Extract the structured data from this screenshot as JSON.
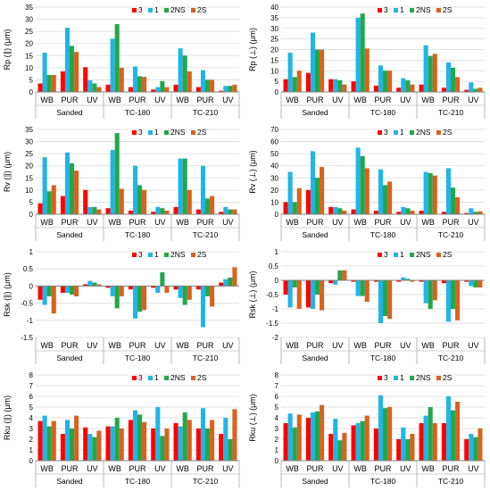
{
  "chart_data": [
    {
      "type": "bar",
      "ylabel": "Rp (∥) (μm)",
      "ylim": [
        0,
        35
      ],
      "ytick_step": 5,
      "y_ticks": [
        "0",
        "5",
        "10",
        "15",
        "20",
        "25",
        "30",
        "35"
      ],
      "groups": [
        "Sanded",
        "TC-180",
        "TC-210"
      ],
      "categories": [
        "WB",
        "PUR",
        "UV",
        "WB",
        "PUR",
        "UV",
        "WB",
        "PUR",
        "UV"
      ],
      "legend": [
        "3",
        "1",
        "2NS",
        "2S"
      ],
      "series": [
        {
          "name": "3",
          "color": "#ff0000",
          "values": [
            3.5,
            8.5,
            10.2,
            3.0,
            2.0,
            1.0,
            3.0,
            2.0,
            0.5
          ]
        },
        {
          "name": "1",
          "color": "#1fb5e8",
          "values": [
            16.2,
            26.5,
            4.8,
            22.0,
            10.5,
            2.0,
            18.0,
            9.0,
            2.5
          ]
        },
        {
          "name": "2NS",
          "color": "#22a84a",
          "values": [
            7.0,
            19.0,
            3.5,
            28.0,
            6.5,
            4.5,
            15.0,
            5.0,
            2.5
          ]
        },
        {
          "name": "2S",
          "color": "#d9621c",
          "values": [
            7.0,
            16.5,
            2.0,
            10.0,
            6.2,
            2.0,
            8.5,
            5.0,
            3.0
          ]
        }
      ]
    },
    {
      "type": "bar",
      "ylabel": "Rp (⊥) (μm)",
      "ylim": [
        0,
        40
      ],
      "ytick_step": 5,
      "y_ticks": [
        "0",
        "5",
        "10",
        "15",
        "20",
        "25",
        "30",
        "35",
        "40"
      ],
      "groups": [
        "Sanded",
        "TC-180",
        "TC-210"
      ],
      "categories": [
        "WB",
        "PUR",
        "UV",
        "WB",
        "PUR",
        "UV",
        "WB",
        "PUR",
        "UV"
      ],
      "legend": [
        "3",
        "1",
        "2NS",
        "2S"
      ],
      "series": [
        {
          "name": "3",
          "color": "#ff0000",
          "values": [
            6.0,
            9.0,
            6.0,
            5.0,
            3.0,
            2.0,
            3.5,
            2.0,
            1.0
          ]
        },
        {
          "name": "1",
          "color": "#1fb5e8",
          "values": [
            18.5,
            28.0,
            6.0,
            35.0,
            12.5,
            6.5,
            22.0,
            14.0,
            4.5
          ]
        },
        {
          "name": "2NS",
          "color": "#22a84a",
          "values": [
            7.0,
            20.0,
            5.5,
            37.0,
            10.0,
            5.5,
            17.0,
            11.5,
            1.5
          ]
        },
        {
          "name": "2S",
          "color": "#d9621c",
          "values": [
            10.0,
            20.0,
            3.5,
            20.5,
            10.0,
            3.5,
            18.0,
            7.0,
            2.0
          ]
        }
      ]
    },
    {
      "type": "bar",
      "ylabel": "Rv (∥) (μm)",
      "ylim": [
        0,
        35
      ],
      "ytick_step": 5,
      "y_ticks": [
        "0",
        "5",
        "10",
        "15",
        "20",
        "25",
        "30",
        "35"
      ],
      "groups": [
        "Sanded",
        "TC-180",
        "TC-210"
      ],
      "categories": [
        "WB",
        "PUR",
        "UV",
        "WB",
        "PUR",
        "UV",
        "WB",
        "PUR",
        "UV"
      ],
      "legend": [
        "3",
        "1",
        "2NS",
        "2S"
      ],
      "series": [
        {
          "name": "3",
          "color": "#ff0000",
          "values": [
            4.5,
            7.5,
            10.0,
            2.5,
            1.5,
            1.0,
            3.0,
            2.0,
            1.0
          ]
        },
        {
          "name": "1",
          "color": "#1fb5e8",
          "values": [
            23.5,
            25.5,
            3.0,
            26.5,
            20.0,
            3.0,
            23.0,
            20.0,
            3.0
          ]
        },
        {
          "name": "2NS",
          "color": "#22a84a",
          "values": [
            9.5,
            21.0,
            3.0,
            33.5,
            12.0,
            2.5,
            23.0,
            6.5,
            2.0
          ]
        },
        {
          "name": "2S",
          "color": "#d9621c",
          "values": [
            12.0,
            18.0,
            2.0,
            10.5,
            10.0,
            1.5,
            10.0,
            7.5,
            2.0
          ]
        }
      ]
    },
    {
      "type": "bar",
      "ylabel": "Rv (⊥) (μm)",
      "ylim": [
        0,
        70
      ],
      "ytick_step": 10,
      "y_ticks": [
        "0",
        "10",
        "20",
        "30",
        "40",
        "50",
        "60",
        "70"
      ],
      "groups": [
        "Sanded",
        "TC-180",
        "TC-210"
      ],
      "categories": [
        "WB",
        "PUR",
        "UV",
        "WB",
        "PUR",
        "UV",
        "WB",
        "PUR",
        "UV"
      ],
      "legend": [
        "3",
        "1",
        "2NS",
        "2S"
      ],
      "series": [
        {
          "name": "3",
          "color": "#ff0000",
          "values": [
            10.0,
            20.0,
            6.0,
            4.0,
            3.0,
            2.0,
            3.0,
            2.0,
            1.0
          ]
        },
        {
          "name": "1",
          "color": "#1fb5e8",
          "values": [
            35.0,
            52.0,
            6.0,
            55.0,
            37.0,
            6.0,
            35.0,
            38.0,
            5.0
          ]
        },
        {
          "name": "2NS",
          "color": "#22a84a",
          "values": [
            10.0,
            30.0,
            5.0,
            48.0,
            24.0,
            5.0,
            34.0,
            22.0,
            2.0
          ]
        },
        {
          "name": "2S",
          "color": "#d9621c",
          "values": [
            21.5,
            39.0,
            3.0,
            38.0,
            27.0,
            3.0,
            32.0,
            14.0,
            2.5
          ]
        }
      ]
    },
    {
      "type": "bar",
      "ylabel": "Rsk (∥) (μm)",
      "ylim": [
        -1.5,
        1
      ],
      "ytick_step": 0.5,
      "y_ticks": [
        "-1.5",
        "-1",
        "-0.5",
        "0",
        "0.5",
        "1"
      ],
      "groups": [
        "Sanded",
        "TC-180",
        "TC-210"
      ],
      "categories": [
        "WB",
        "PUR",
        "UV",
        "WB",
        "PUR",
        "UV",
        "WB",
        "PUR",
        "UV"
      ],
      "legend": [
        "3",
        "1",
        "2NS",
        "2S"
      ],
      "series": [
        {
          "name": "3",
          "color": "#ff0000",
          "values": [
            -0.4,
            -0.2,
            0.05,
            -0.05,
            -0.1,
            -0.05,
            -0.1,
            -0.1,
            0.1
          ]
        },
        {
          "name": "1",
          "color": "#1fb5e8",
          "values": [
            -0.55,
            -0.2,
            0.15,
            -0.3,
            -0.95,
            -0.2,
            -0.35,
            -1.2,
            0.2
          ]
        },
        {
          "name": "2NS",
          "color": "#22a84a",
          "values": [
            -0.3,
            -0.25,
            0.1,
            -0.65,
            -0.75,
            0.4,
            -0.55,
            -0.3,
            0.25
          ]
        },
        {
          "name": "2S",
          "color": "#d9621c",
          "values": [
            -0.8,
            -0.3,
            0.05,
            -0.3,
            -0.7,
            -0.2,
            -0.4,
            -0.6,
            0.55
          ]
        }
      ]
    },
    {
      "type": "bar",
      "ylabel": "Rsk (⊥) (μm)",
      "ylim": [
        -2,
        1
      ],
      "ytick_step": 0.5,
      "y_ticks": [
        "-2",
        "-1.5",
        "-1",
        "-0.5",
        "0",
        "0.5",
        "1"
      ],
      "groups": [
        "Sanded",
        "TC-180",
        "TC-210"
      ],
      "categories": [
        "WB",
        "PUR",
        "UV",
        "WB",
        "PUR",
        "UV",
        "WB",
        "PUR",
        "UV"
      ],
      "legend": [
        "3",
        "1",
        "2NS",
        "2S"
      ],
      "series": [
        {
          "name": "3",
          "color": "#ff0000",
          "values": [
            -0.5,
            -0.95,
            -0.1,
            -0.05,
            -0.05,
            -0.05,
            -0.05,
            -0.1,
            -0.05
          ]
        },
        {
          "name": "1",
          "color": "#1fb5e8",
          "values": [
            -0.95,
            -1.0,
            -0.15,
            -0.55,
            -1.5,
            0.1,
            -0.8,
            -1.45,
            -0.2
          ]
        },
        {
          "name": "2NS",
          "color": "#22a84a",
          "values": [
            -0.25,
            -0.5,
            0.35,
            -0.55,
            -1.25,
            0.05,
            -1.0,
            -1.0,
            -0.25
          ]
        },
        {
          "name": "2S",
          "color": "#d9621c",
          "values": [
            -1.0,
            -1.05,
            0.35,
            -0.75,
            -1.35,
            -0.05,
            -0.7,
            -1.4,
            -0.25
          ]
        }
      ]
    },
    {
      "type": "bar",
      "ylabel": "Rku (∥) (μm)",
      "ylim": [
        0,
        8
      ],
      "ytick_step": 1,
      "y_ticks": [
        "0",
        "1",
        "2",
        "3",
        "4",
        "5",
        "6",
        "7",
        "8"
      ],
      "groups": [
        "Sanded",
        "TC-180",
        "TC-210"
      ],
      "categories": [
        "WB",
        "PUR",
        "UV",
        "WB",
        "PUR",
        "UV",
        "WB",
        "PUR",
        "UV"
      ],
      "legend": [
        "3",
        "1",
        "2NS",
        "2S"
      ],
      "series": [
        {
          "name": "3",
          "color": "#ff0000",
          "values": [
            3.7,
            2.5,
            3.1,
            3.2,
            3.8,
            3.0,
            3.5,
            3.0,
            2.5
          ]
        },
        {
          "name": "1",
          "color": "#1fb5e8",
          "values": [
            4.2,
            3.8,
            2.5,
            3.2,
            4.7,
            5.0,
            3.2,
            4.9,
            4.0
          ]
        },
        {
          "name": "2NS",
          "color": "#22a84a",
          "values": [
            3.2,
            3.0,
            2.2,
            4.0,
            4.3,
            2.3,
            4.5,
            3.0,
            2.0
          ]
        },
        {
          "name": "2S",
          "color": "#d9621c",
          "values": [
            3.7,
            4.2,
            2.8,
            3.0,
            3.6,
            3.0,
            3.8,
            3.8,
            4.8
          ]
        }
      ]
    },
    {
      "type": "bar",
      "ylabel": "Rku (⊥) (μm)",
      "ylim": [
        0,
        8
      ],
      "ytick_step": 1,
      "y_ticks": [
        "0",
        "1",
        "2",
        "3",
        "4",
        "5",
        "6",
        "7",
        "8"
      ],
      "groups": [
        "Sanded",
        "TC-180",
        "TC-210"
      ],
      "categories": [
        "WB",
        "PUR",
        "UV",
        "WB",
        "PUR",
        "UV",
        "WB",
        "PUR",
        "UV"
      ],
      "legend": [
        "3",
        "1",
        "2NS",
        "2S"
      ],
      "series": [
        {
          "name": "3",
          "color": "#ff0000",
          "values": [
            3.5,
            4.0,
            2.5,
            3.3,
            3.0,
            2.0,
            3.5,
            3.5,
            2.0
          ]
        },
        {
          "name": "1",
          "color": "#1fb5e8",
          "values": [
            4.4,
            4.5,
            3.9,
            3.5,
            6.1,
            3.1,
            4.2,
            6.0,
            2.5
          ]
        },
        {
          "name": "2NS",
          "color": "#22a84a",
          "values": [
            3.1,
            4.6,
            1.9,
            3.7,
            4.9,
            2.0,
            5.0,
            4.7,
            2.2
          ]
        },
        {
          "name": "2S",
          "color": "#d9621c",
          "values": [
            4.3,
            5.2,
            2.6,
            4.2,
            5.0,
            2.5,
            3.5,
            5.5,
            3.0
          ]
        }
      ]
    }
  ]
}
